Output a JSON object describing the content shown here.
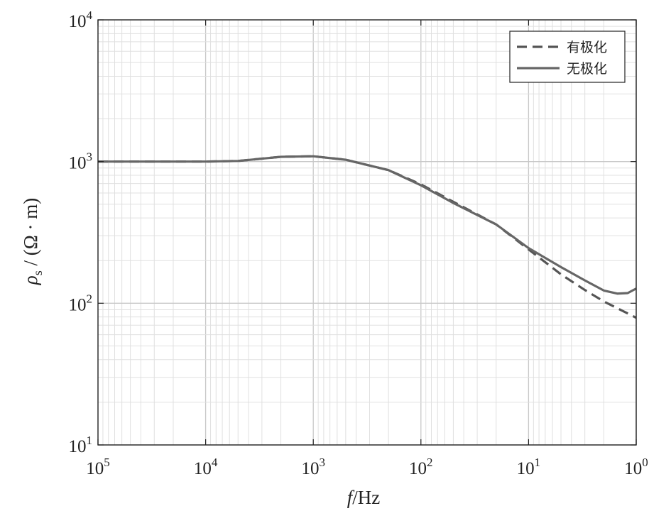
{
  "chart_data": {
    "type": "line",
    "x_scale": "log",
    "y_scale": "log",
    "x_reversed": true,
    "grid": true,
    "legend_position": "top-right",
    "xlabel": {
      "italic": "f",
      "rest": "/Hz"
    },
    "ylabel": {
      "symbol": "ρ",
      "sub": "s",
      "rest": " / (Ω · m)"
    },
    "xlim": [
      100000,
      1
    ],
    "ylim": [
      10,
      10000
    ],
    "x_ticks": [
      {
        "base": "10",
        "exp": "5",
        "value": 100000
      },
      {
        "base": "10",
        "exp": "4",
        "value": 10000
      },
      {
        "base": "10",
        "exp": "3",
        "value": 1000
      },
      {
        "base": "10",
        "exp": "2",
        "value": 100
      },
      {
        "base": "10",
        "exp": "1",
        "value": 10
      },
      {
        "base": "10",
        "exp": "0",
        "value": 1
      }
    ],
    "y_ticks": [
      {
        "base": "10",
        "exp": "1",
        "value": 10
      },
      {
        "base": "10",
        "exp": "2",
        "value": 100
      },
      {
        "base": "10",
        "exp": "3",
        "value": 1000
      },
      {
        "base": "10",
        "exp": "4",
        "value": 10000
      }
    ],
    "series": [
      {
        "name": "有极化",
        "style": "dashed",
        "color": "#555555",
        "x": [
          100000,
          50000,
          20000,
          10000,
          5000,
          2000,
          1000,
          500,
          200,
          100,
          50,
          20,
          10,
          5,
          3,
          2,
          1
        ],
        "y": [
          1000,
          1000,
          1000,
          1000,
          1010,
          1080,
          1090,
          1030,
          870,
          690,
          520,
          360,
          240,
          160,
          124,
          103,
          79
        ]
      },
      {
        "name": "无极化",
        "style": "solid",
        "color": "#666666",
        "x": [
          100000,
          50000,
          20000,
          10000,
          5000,
          2000,
          1000,
          500,
          200,
          100,
          50,
          20,
          10,
          5,
          3,
          2,
          1.5,
          1.2,
          1
        ],
        "y": [
          1000,
          1000,
          1000,
          1000,
          1010,
          1080,
          1090,
          1030,
          870,
          680,
          510,
          360,
          245,
          180,
          145,
          123,
          117,
          118,
          127
        ]
      }
    ]
  },
  "colors": {
    "axis": "#222222",
    "grid_major": "#c8c8c8",
    "grid_minor": "#e0e0e0",
    "dashed_series": "#555555",
    "solid_series": "#666666"
  }
}
